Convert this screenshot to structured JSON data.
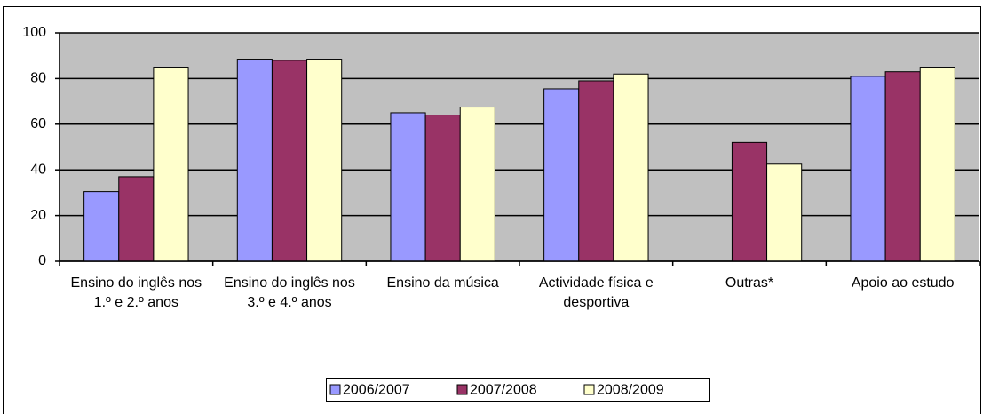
{
  "chart_data": {
    "type": "bar",
    "categories": [
      "Ensino do inglês nos 1.º e 2.º anos",
      "Ensino do inglês nos 3.º e 4.º anos",
      "Ensino da música",
      "Actividade física e desportiva",
      "Outras*",
      "Apoio ao estudo"
    ],
    "series": [
      {
        "name": "2006/2007",
        "color": "#9999ff",
        "values": [
          30.5,
          88.5,
          65,
          75.5,
          null,
          81
        ]
      },
      {
        "name": "2007/2008",
        "color": "#993366",
        "values": [
          37,
          88,
          64,
          79,
          52,
          83
        ]
      },
      {
        "name": "2008/2009",
        "color": "#ffffcc",
        "values": [
          85,
          88.5,
          67.5,
          82,
          42.5,
          85
        ]
      }
    ],
    "ylim": [
      0,
      100
    ],
    "yticks": [
      0,
      20,
      40,
      60,
      80,
      100
    ],
    "grid": true,
    "legend": "bottom"
  }
}
